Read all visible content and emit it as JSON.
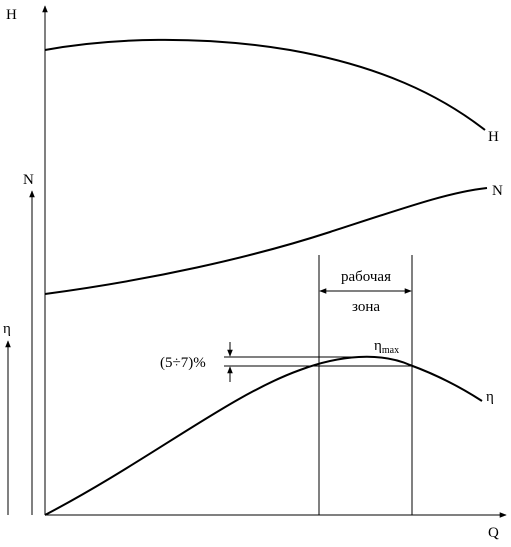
{
  "axes": {
    "h": "H",
    "n": "N",
    "eta": "η",
    "q": "Q"
  },
  "curves": {
    "h": "H",
    "n": "N",
    "eta": "η"
  },
  "working_zone": {
    "line1": "рабочая",
    "line2": "зона"
  },
  "tolerance": "(5÷7)%",
  "eta_max": {
    "symbol": "η",
    "subscript": "max"
  }
}
